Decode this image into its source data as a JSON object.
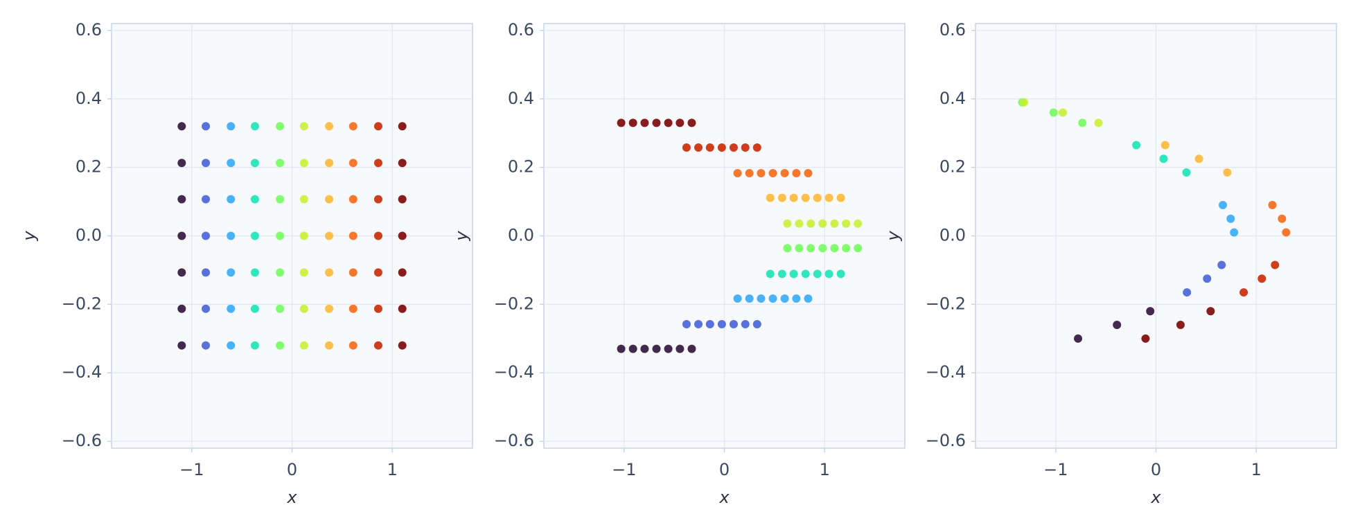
{
  "chart_data": [
    {
      "type": "scatter",
      "xlabel": "x",
      "ylabel": "y",
      "grid": true,
      "xlim": [
        -1.8,
        1.8
      ],
      "ylim": [
        -0.62,
        0.62
      ],
      "xticks": [
        {
          "value": -1,
          "label": "−1"
        },
        0,
        1
      ],
      "yticks": [
        {
          "value": -0.6,
          "label": "−0.6"
        },
        {
          "value": -0.4,
          "label": "−0.4"
        },
        {
          "value": -0.2,
          "label": "−0.2"
        },
        {
          "value": 0,
          "label": "0.0"
        },
        0.2,
        0.4,
        0.6
      ],
      "series": [
        {
          "color": "#30123b",
          "x": [
            -1.1,
            -1.1,
            -1.1,
            -1.1,
            -1.1,
            -1.1,
            -1.1
          ],
          "values": [
            -0.32,
            -0.213,
            -0.107,
            0,
            0.107,
            0.213,
            0.32
          ]
        },
        {
          "color": "#4662d7",
          "x": [
            -0.86,
            -0.86,
            -0.86,
            -0.86,
            -0.86,
            -0.86,
            -0.86
          ],
          "values": [
            -0.32,
            -0.213,
            -0.107,
            0,
            0.107,
            0.213,
            0.32
          ]
        },
        {
          "color": "#36aaf9",
          "x": [
            -0.61,
            -0.61,
            -0.61,
            -0.61,
            -0.61,
            -0.61,
            -0.61
          ],
          "values": [
            -0.32,
            -0.213,
            -0.107,
            0,
            0.107,
            0.213,
            0.32
          ]
        },
        {
          "color": "#1ae4b6",
          "x": [
            -0.37,
            -0.37,
            -0.37,
            -0.37,
            -0.37,
            -0.37,
            -0.37
          ],
          "values": [
            -0.32,
            -0.213,
            -0.107,
            0,
            0.107,
            0.213,
            0.32
          ]
        },
        {
          "color": "#72fe5e",
          "x": [
            -0.12,
            -0.12,
            -0.12,
            -0.12,
            -0.12,
            -0.12,
            -0.12
          ],
          "values": [
            -0.32,
            -0.213,
            -0.107,
            0,
            0.107,
            0.213,
            0.32
          ]
        },
        {
          "color": "#c7ef34",
          "x": [
            0.12,
            0.12,
            0.12,
            0.12,
            0.12,
            0.12,
            0.12
          ],
          "values": [
            -0.32,
            -0.213,
            -0.107,
            0,
            0.107,
            0.213,
            0.32
          ]
        },
        {
          "color": "#fbb938",
          "x": [
            0.37,
            0.37,
            0.37,
            0.37,
            0.37,
            0.37,
            0.37
          ],
          "values": [
            -0.32,
            -0.213,
            -0.107,
            0,
            0.107,
            0.213,
            0.32
          ]
        },
        {
          "color": "#f56918",
          "x": [
            0.61,
            0.61,
            0.61,
            0.61,
            0.61,
            0.61,
            0.61
          ],
          "values": [
            -0.32,
            -0.213,
            -0.107,
            0,
            0.107,
            0.213,
            0.32
          ]
        },
        {
          "color": "#c92903",
          "x": [
            0.86,
            0.86,
            0.86,
            0.86,
            0.86,
            0.86,
            0.86
          ],
          "values": [
            -0.32,
            -0.213,
            -0.107,
            0,
            0.107,
            0.213,
            0.32
          ]
        },
        {
          "color": "#7a0403",
          "x": [
            1.1,
            1.1,
            1.1,
            1.1,
            1.1,
            1.1,
            1.1
          ],
          "values": [
            -0.32,
            -0.213,
            -0.107,
            0,
            0.107,
            0.213,
            0.32
          ]
        }
      ]
    },
    {
      "type": "scatter",
      "xlabel": "x",
      "ylabel": "y",
      "grid": true,
      "xlim": [
        -1.8,
        1.8
      ],
      "ylim": [
        -0.62,
        0.62
      ],
      "xticks": [
        {
          "value": -1,
          "label": "−1"
        },
        0,
        1
      ],
      "yticks": [
        {
          "value": -0.6,
          "label": "−0.6"
        },
        {
          "value": -0.4,
          "label": "−0.4"
        },
        {
          "value": -0.2,
          "label": "−0.2"
        },
        {
          "value": 0,
          "label": "0.0"
        },
        0.2,
        0.4,
        0.6
      ],
      "series": [
        {
          "color": "#30123b",
          "x": [
            -1.029,
            -0.911,
            -0.795,
            -0.677,
            -0.559,
            -0.443,
            -0.325
          ],
          "values": [
            -0.33,
            -0.33,
            -0.33,
            -0.33,
            -0.33,
            -0.33,
            -0.33
          ]
        },
        {
          "color": "#4662d7",
          "x": [
            -0.377,
            -0.259,
            -0.143,
            -0.025,
            0.093,
            0.209,
            0.327
          ],
          "values": [
            -0.258,
            -0.258,
            -0.258,
            -0.258,
            -0.258,
            -0.258,
            -0.258
          ]
        },
        {
          "color": "#36aaf9",
          "x": [
            0.132,
            0.25,
            0.366,
            0.484,
            0.602,
            0.718,
            0.836
          ],
          "values": [
            -0.183,
            -0.183,
            -0.183,
            -0.183,
            -0.183,
            -0.183,
            -0.183
          ]
        },
        {
          "color": "#1ae4b6",
          "x": [
            0.458,
            0.576,
            0.692,
            0.81,
            0.928,
            1.044,
            1.162
          ],
          "values": [
            -0.111,
            -0.111,
            -0.111,
            -0.111,
            -0.111,
            -0.111,
            -0.111
          ]
        },
        {
          "color": "#72fe5e",
          "x": [
            0.628,
            0.746,
            0.862,
            0.98,
            1.098,
            1.214,
            1.332
          ],
          "values": [
            -0.036,
            -0.036,
            -0.036,
            -0.036,
            -0.036,
            -0.036,
            -0.036
          ]
        },
        {
          "color": "#c7ef34",
          "x": [
            0.628,
            0.746,
            0.862,
            0.98,
            1.098,
            1.214,
            1.332
          ],
          "values": [
            0.036,
            0.036,
            0.036,
            0.036,
            0.036,
            0.036,
            0.036
          ]
        },
        {
          "color": "#fbb938",
          "x": [
            0.458,
            0.576,
            0.692,
            0.81,
            0.928,
            1.044,
            1.162
          ],
          "values": [
            0.111,
            0.111,
            0.111,
            0.111,
            0.111,
            0.111,
            0.111
          ]
        },
        {
          "color": "#f56918",
          "x": [
            0.132,
            0.25,
            0.366,
            0.484,
            0.602,
            0.718,
            0.836
          ],
          "values": [
            0.183,
            0.183,
            0.183,
            0.183,
            0.183,
            0.183,
            0.183
          ]
        },
        {
          "color": "#c92903",
          "x": [
            -0.377,
            -0.259,
            -0.143,
            -0.025,
            0.093,
            0.209,
            0.327
          ],
          "values": [
            0.258,
            0.258,
            0.258,
            0.258,
            0.258,
            0.258,
            0.258
          ]
        },
        {
          "color": "#7a0403",
          "x": [
            -1.029,
            -0.911,
            -0.795,
            -0.677,
            -0.559,
            -0.443,
            -0.325
          ],
          "values": [
            0.33,
            0.33,
            0.33,
            0.33,
            0.33,
            0.33,
            0.33
          ]
        }
      ]
    },
    {
      "type": "scatter",
      "xlabel": "x",
      "ylabel": "y",
      "grid": true,
      "xlim": [
        -1.8,
        1.8
      ],
      "ylim": [
        -0.62,
        0.62
      ],
      "xticks": [
        {
          "value": -1,
          "label": "−1"
        },
        0,
        1
      ],
      "yticks": [
        {
          "value": -0.6,
          "label": "−0.6"
        },
        {
          "value": -0.4,
          "label": "−0.4"
        },
        {
          "value": -0.2,
          "label": "−0.2"
        },
        {
          "value": 0,
          "label": "0.0"
        },
        0.2,
        0.4,
        0.6
      ],
      "series": [
        {
          "color": "#30123b",
          "x": [
            -0.777,
            -0.389,
            -0.057
          ],
          "values": [
            -0.3,
            -0.26,
            -0.22
          ]
        },
        {
          "color": "#4662d7",
          "x": [
            0.309,
            0.51,
            0.655
          ],
          "values": [
            -0.165,
            -0.125,
            -0.085
          ]
        },
        {
          "color": "#36aaf9",
          "x": [
            0.779,
            0.745,
            0.667
          ],
          "values": [
            0.01,
            0.05,
            0.09
          ]
        },
        {
          "color": "#1ae4b6",
          "x": [
            0.304,
            0.076,
            -0.196
          ],
          "values": [
            0.185,
            0.225,
            0.265
          ]
        },
        {
          "color": "#72fe5e",
          "x": [
            -0.734,
            -1.021,
            -1.334
          ],
          "values": [
            0.33,
            0.36,
            0.39
          ]
        },
        {
          "color": "#c7ef34",
          "x": [
            -1.316,
            -0.929,
            -0.573
          ],
          "values": [
            0.39,
            0.36,
            0.33
          ]
        },
        {
          "color": "#fbb938",
          "x": [
            0.092,
            0.429,
            0.711
          ],
          "values": [
            0.265,
            0.225,
            0.185
          ]
        },
        {
          "color": "#f56918",
          "x": [
            1.161,
            1.257,
            1.298
          ],
          "values": [
            0.09,
            0.05,
            0.01
          ]
        },
        {
          "color": "#c92903",
          "x": [
            1.187,
            1.056,
            0.875
          ],
          "values": [
            -0.085,
            -0.125,
            -0.165
          ]
        },
        {
          "color": "#7a0403",
          "x": [
            0.545,
            0.245,
            -0.104
          ],
          "values": [
            -0.22,
            -0.26,
            -0.3
          ]
        }
      ]
    }
  ]
}
